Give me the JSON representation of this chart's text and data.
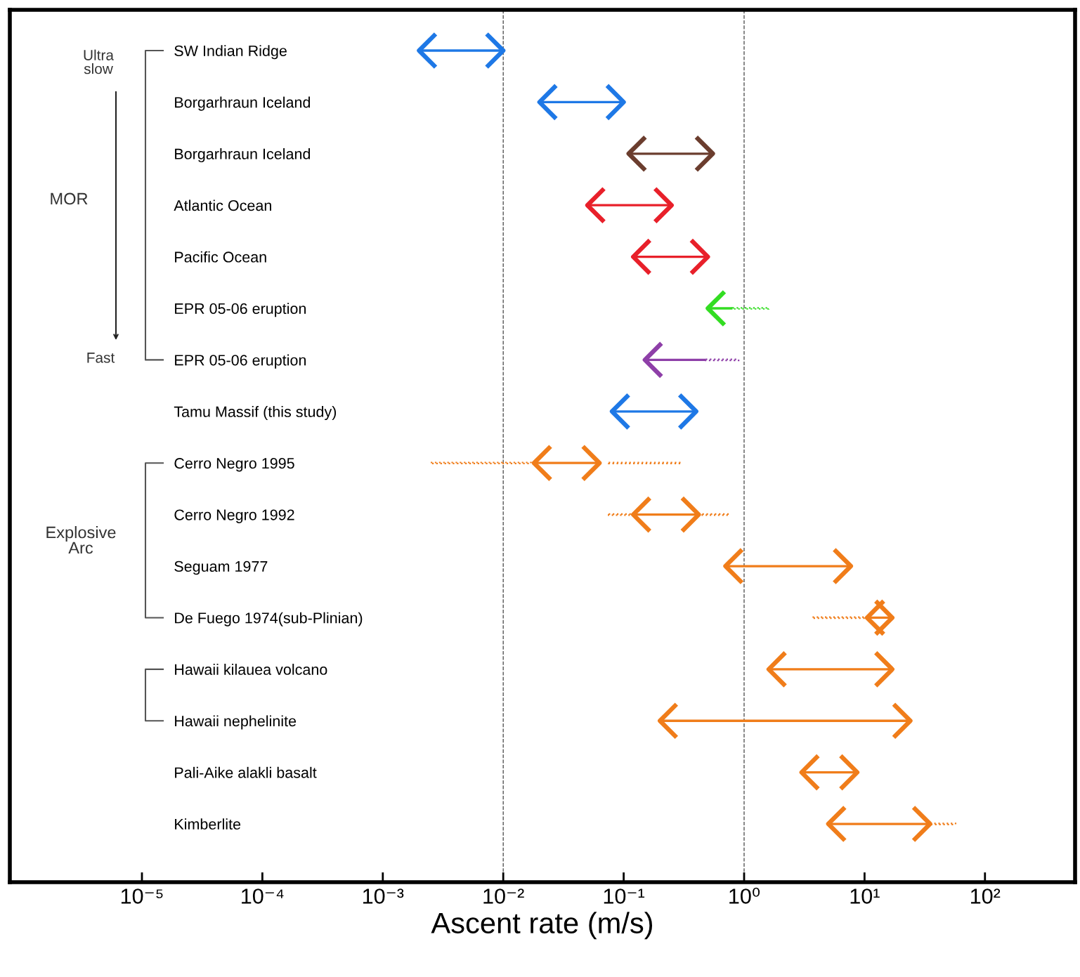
{
  "chart_data": {
    "type": "bar",
    "orientation": "horizontal",
    "log": "x",
    "categories": [
      "SW Indian Ridge",
      "Borgarhraun Iceland",
      "Borgarhraun Iceland",
      "Atlantic Ocean",
      "Pacific Ocean",
      "EPR 05-06 eruption",
      "EPR 05-06 eruption",
      "Tamu Massif (this study)",
      "Cerro Negro 1995",
      "Cerro Negro 1992",
      "Seguam 1977",
      "De Fuego 1974(sub-Plinian)",
      "Hawaii kilauea volcano",
      "Hawaii nephelinite",
      "Pali-Aike alakli basalt",
      "Kimberlite"
    ],
    "series": [
      {
        "marker": "triangle",
        "line_style": "solid",
        "base": [
          0.002,
          0.02,
          0.11,
          0.05,
          0.12,
          null,
          null,
          0.08,
          0.018,
          0.12,
          0.7,
          10.5,
          1.6,
          0.2,
          3,
          5
        ],
        "values": [
          0.008,
          0.08,
          0.44,
          0.2,
          0.38,
          null,
          null,
          0.32,
          0.045,
          0.3,
          7,
          6.5,
          15.4,
          23.8,
          5.7,
          30
        ],
        "colors": [
          "#1e78e6",
          "#1e78e6",
          "#6b3d2e",
          "#e8202a",
          "#e8202a",
          null,
          null,
          "#1e78e6",
          "#f07d1a",
          "#f07d1a",
          "#f07d1a",
          "#f07d1a",
          "#f07d1a",
          "#f07d1a",
          "#f07d1a",
          "#f07d1a"
        ]
      },
      {
        "line_style": "solid",
        "base": [
          null,
          null,
          null,
          null,
          null,
          0.5,
          0.15,
          null,
          null,
          null,
          null,
          null,
          null,
          null,
          null,
          null
        ],
        "values": [
          null,
          null,
          null,
          null,
          null,
          0.3,
          0.33,
          null,
          null,
          null,
          null,
          null,
          null,
          null,
          null,
          null
        ],
        "colors": [
          null,
          null,
          null,
          null,
          null,
          "#33dd22",
          "#8e3fa8",
          null,
          null,
          null,
          null,
          null,
          null,
          null,
          null,
          null
        ]
      },
      {
        "line_style": "dotted",
        "base": [
          null,
          null,
          null,
          null,
          null,
          0.8,
          0.48,
          null,
          0.0025,
          0.075,
          null,
          3.7,
          null,
          null,
          null,
          35
        ],
        "values": [
          null,
          null,
          null,
          null,
          null,
          0.8,
          0.42,
          null,
          0.0145,
          0.045,
          null,
          6.8,
          null,
          null,
          null,
          22
        ],
        "colors": [
          null,
          null,
          null,
          null,
          null,
          "#33dd22",
          "#8e3fa8",
          null,
          "#f07d1a",
          "#f07d1a",
          null,
          "#f07d1a",
          null,
          null,
          null,
          "#f07d1a"
        ]
      },
      {
        "line_style": "dotted",
        "base": [
          null,
          null,
          null,
          null,
          null,
          null,
          null,
          null,
          0.075,
          0.45,
          null,
          null,
          null,
          null,
          null,
          null
        ],
        "values": [
          null,
          null,
          null,
          null,
          null,
          null,
          null,
          null,
          0.225,
          0.3,
          null,
          null,
          null,
          null,
          null,
          null
        ],
        "colors": [
          null,
          null,
          null,
          null,
          null,
          null,
          null,
          null,
          "#f07d1a",
          "#f07d1a",
          null,
          null,
          null,
          null,
          null,
          null
        ]
      }
    ],
    "xlabel": "Ascent rate (m/s)",
    "xlim": [
      8e-07,
      560
    ],
    "xticks": [
      {
        "value": 1e-05,
        "label": "10⁻⁵"
      },
      {
        "value": 0.0001,
        "label": "10⁻⁴"
      },
      {
        "value": 0.001,
        "label": "10⁻³"
      },
      {
        "value": 0.01,
        "label": "10⁻²"
      },
      {
        "value": 0.1,
        "label": "10⁻¹"
      },
      {
        "value": 1,
        "label": "10⁰"
      },
      {
        "value": 10,
        "label": "10¹"
      },
      {
        "value": 100,
        "label": "10²"
      }
    ],
    "ref_lines": [
      {
        "axis": "x",
        "value": 0.01,
        "color": "#555555",
        "line_style": "dashed"
      },
      {
        "axis": "x",
        "value": 1,
        "color": "#555555",
        "line_style": "dashed"
      }
    ],
    "annotations": [
      "Ultra\nslow",
      "MOR",
      "Fast",
      "Explosive\nArc"
    ],
    "grid": false,
    "legend": false
  }
}
